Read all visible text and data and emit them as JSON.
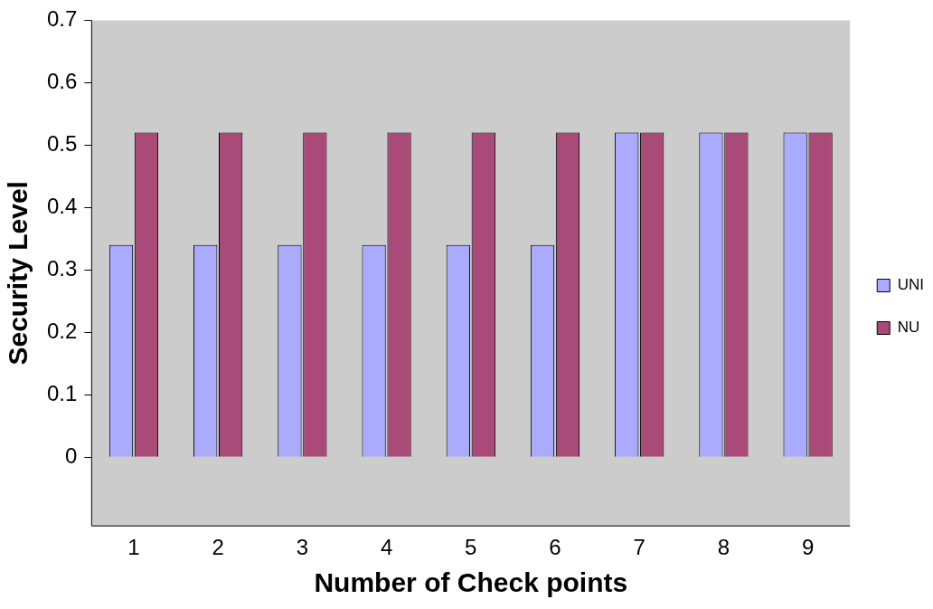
{
  "chart_data": {
    "type": "bar",
    "xlabel": "Number of Check points",
    "ylabel": "Security Level",
    "categories": [
      "1",
      "2",
      "3",
      "4",
      "5",
      "6",
      "7",
      "8",
      "9"
    ],
    "series": [
      {
        "name": "UNI",
        "color": "#aaaaff",
        "values": [
          0.34,
          0.34,
          0.34,
          0.34,
          0.34,
          0.34,
          0.52,
          0.52,
          0.52
        ]
      },
      {
        "name": "NU",
        "color": "#a94a78",
        "values": [
          0.52,
          0.52,
          0.52,
          0.52,
          0.52,
          0.52,
          0.52,
          0.52,
          0.52
        ]
      }
    ],
    "ylim": [
      -0.11,
      0.7
    ],
    "yticks": [
      0,
      0.1,
      0.2,
      0.3,
      0.4,
      0.5,
      0.6,
      0.7
    ],
    "legend": "right",
    "grid": false
  }
}
